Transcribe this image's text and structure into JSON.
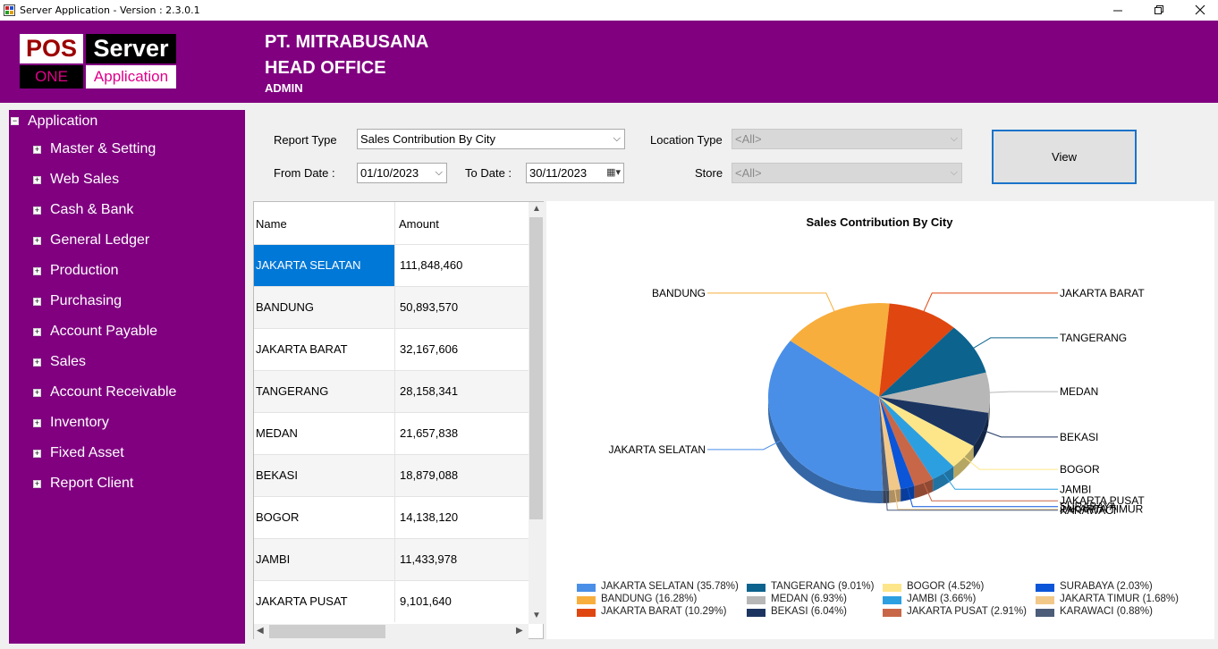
{
  "window": {
    "title": "Server Application - Version : 2.3.0.1",
    "icon": "app-window-icon"
  },
  "logo": {
    "pos": "POS",
    "server": "Server",
    "one": "ONE",
    "application": "Application"
  },
  "header": {
    "company": "PT. MITRABUSANA",
    "branch": "HEAD OFFICE",
    "user": "ADMIN"
  },
  "sidebar": {
    "root": "Application",
    "items": [
      "Master & Setting",
      "Web Sales",
      "Cash & Bank",
      "General Ledger",
      "Production",
      "Purchasing",
      "Account Payable",
      "Sales",
      "Account Receivable",
      "Inventory",
      "Fixed Asset",
      "Report Client"
    ]
  },
  "filters": {
    "report_type_label": "Report Type",
    "report_type_value": "Sales Contribution By City",
    "location_type_label": "Location Type",
    "location_type_value": "<All>",
    "from_date_label": "From Date :",
    "from_date_value": "01/10/2023",
    "to_date_label": "To Date :",
    "to_date_value": "30/11/2023",
    "store_label": "Store",
    "store_value": "<All>",
    "view_button": "View"
  },
  "grid": {
    "columns": [
      "Name",
      "Amount"
    ],
    "rows": [
      [
        "JAKARTA SELATAN",
        "111,848,460"
      ],
      [
        "BANDUNG",
        "50,893,570"
      ],
      [
        "JAKARTA BARAT",
        "32,167,606"
      ],
      [
        "TANGERANG",
        "28,158,341"
      ],
      [
        "MEDAN",
        "21,657,838"
      ],
      [
        "BEKASI",
        "18,879,088"
      ],
      [
        "BOGOR",
        "14,138,120"
      ],
      [
        "JAMBI",
        "11,433,978"
      ],
      [
        "JAKARTA PUSAT",
        "9,101,640"
      ]
    ],
    "selected_row": 0
  },
  "chart_data": {
    "type": "pie",
    "title": "Sales Contribution By City",
    "categories": [
      "JAKARTA SELATAN",
      "BANDUNG",
      "JAKARTA BARAT",
      "TANGERANG",
      "MEDAN",
      "BEKASI",
      "BOGOR",
      "JAMBI",
      "JAKARTA PUSAT",
      "SURABAYA",
      "JAKARTA TIMUR",
      "KARAWACI"
    ],
    "values": [
      35.78,
      16.28,
      10.29,
      9.01,
      6.93,
      6.04,
      4.52,
      3.66,
      2.91,
      2.03,
      1.68,
      0.88
    ],
    "legend": [
      "JAKARTA SELATAN (35.78%)",
      "BANDUNG (16.28%)",
      "JAKARTA BARAT (10.29%)",
      "TANGERANG (9.01%)",
      "MEDAN (6.93%)",
      "BEKASI (6.04%)",
      "BOGOR (4.52%)",
      "JAMBI (3.66%)",
      "JAKARTA PUSAT (2.91%)",
      "SURABAYA (2.03%)",
      "JAKARTA TIMUR (1.68%)",
      "KARAWACI (0.88%)"
    ],
    "colors": [
      "#4a8fe7",
      "#f8ae3c",
      "#e0460f",
      "#0c638e",
      "#b7b7b7",
      "#1c3560",
      "#fde68a",
      "#2c9fe1",
      "#c86748",
      "#0b55d8",
      "#f2c889",
      "#4c5d7a"
    ],
    "legend_placement": "bottom"
  }
}
